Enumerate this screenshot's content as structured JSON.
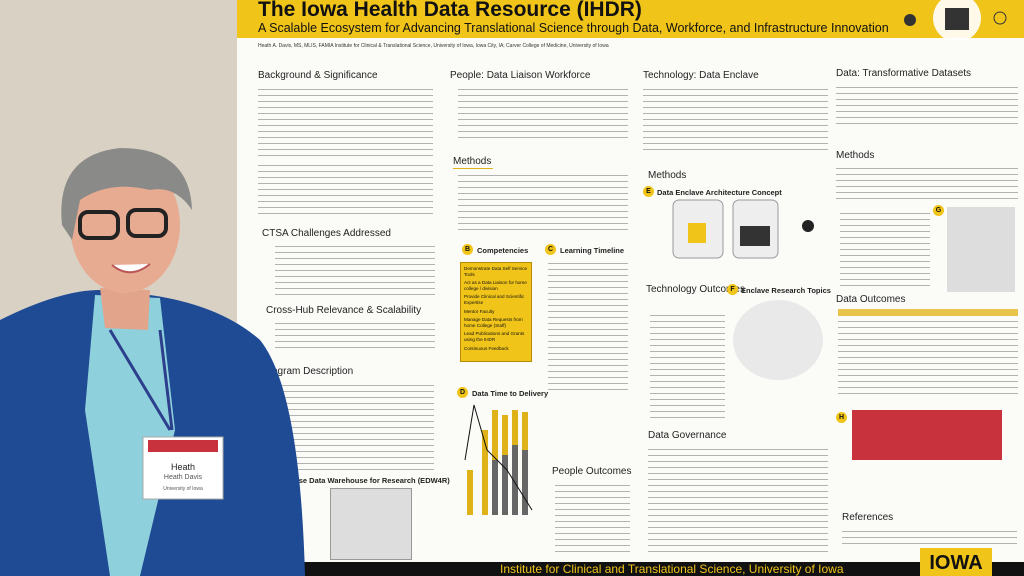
{
  "poster": {
    "title": "The Iowa Health Data Resource (IHDR)",
    "subtitle": "A Scalable Ecosystem for Advancing Translational Science through Data, Workforce, and Infrastructure Innovation",
    "authors": "Heath A. Davis, MS, MLIS, FAMIA Institute for Clinical & Translational Science, University of Iowa, Iowa City, IA; Carver College of Medicine, University of Iowa",
    "headings": [
      "Background & Significance",
      "CTSA Challenges Addressed",
      "Cross-Hub Relevance & Scalability",
      "Program Description",
      "Enterprise Data Warehouse for Research (EDW4R)",
      "People: Data Liaison Workforce",
      "Methods",
      "People Outcomes",
      "Technology: Data Enclave",
      "Technology Outcomes",
      "Data Governance",
      "Data: Transformative Datasets",
      "Methods",
      "Data Outcomes",
      "References"
    ],
    "subheadings": [
      "Competencies",
      "Learning Timeline",
      "Data Time to Delivery",
      "Data Enclave Architecture Concept",
      "Enclave Research Topics"
    ],
    "markers": [
      "B",
      "C",
      "D",
      "E",
      "F",
      "G",
      "H"
    ],
    "competencies": [
      "Demonstrate Data Self Service Tools",
      "Act as a Data Liaison for home college / division",
      "Provide Clinical and Scientific Expertise",
      "Mentor Faculty",
      "Manage Data Requests from home College (Staff)",
      "Lead Publications and Grants using the IHDR",
      "Continuous Feedback"
    ],
    "badge": {
      "first": "Heath",
      "full": "Heath Davis",
      "org": "University of Iowa"
    },
    "footer": "Institute for Clinical and Translational Science, University of Iowa",
    "logo": "IOWA"
  }
}
